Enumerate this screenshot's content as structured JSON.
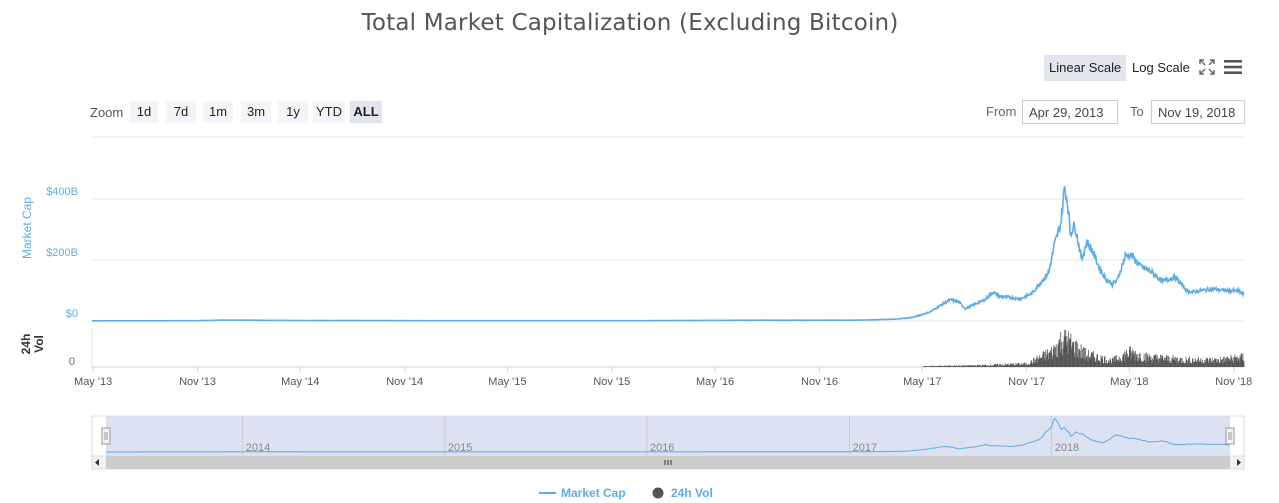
{
  "title": "Total Market Capitalization (Excluding Bitcoin)",
  "toolbar": {
    "linear_label": "Linear Scale",
    "log_label": "Log Scale",
    "active_scale": "linear",
    "fullscreen_icon": "fullscreen-icon",
    "menu_icon": "menu-icon"
  },
  "zoom": {
    "label": "Zoom",
    "buttons": [
      "1d",
      "7d",
      "1m",
      "3m",
      "1y",
      "YTD",
      "ALL"
    ],
    "active": "ALL"
  },
  "range": {
    "from_label": "From",
    "from_value": "Apr 29, 2013",
    "to_label": "To",
    "to_value": "Nov 19, 2018"
  },
  "legend": {
    "market_cap": "Market Cap",
    "volume": "24h Vol"
  },
  "colors": {
    "market_cap": "#5dade2",
    "volume": "#555555",
    "navigator_fill": "#d5dbef",
    "grid": "#e6e6e6"
  },
  "chart_data": {
    "type": "line",
    "title": "Total Market Capitalization (Excluding Bitcoin)",
    "ylabel": "Market Cap",
    "ylim": [
      0,
      520
    ],
    "y_unit": "billion USD",
    "y_ticks": [
      "$0",
      "$200B",
      "$400B"
    ],
    "x_ticks": [
      "May '13",
      "Nov '13",
      "May '14",
      "Nov '14",
      "May '15",
      "Nov '15",
      "May '16",
      "Nov '16",
      "May '17",
      "Nov '17",
      "May '18",
      "Nov '18"
    ],
    "volume_axis": {
      "label": "24h Vol",
      "ticks": [
        "0"
      ]
    },
    "navigator_labels": [
      "2014",
      "2015",
      "2016",
      "2017",
      "2018"
    ],
    "series": [
      {
        "name": "Market Cap",
        "points": [
          [
            "2013-04-29",
            0.5
          ],
          [
            "2013-11-01",
            1
          ],
          [
            "2013-12-15",
            3
          ],
          [
            "2014-06-01",
            1.5
          ],
          [
            "2015-01-01",
            1
          ],
          [
            "2016-01-01",
            1
          ],
          [
            "2016-06-01",
            2.5
          ],
          [
            "2017-01-01",
            2.5
          ],
          [
            "2017-03-15",
            6
          ],
          [
            "2017-04-15",
            12
          ],
          [
            "2017-05-15",
            30
          ],
          [
            "2017-06-10",
            60
          ],
          [
            "2017-06-20",
            70
          ],
          [
            "2017-07-05",
            62
          ],
          [
            "2017-07-16",
            40
          ],
          [
            "2017-08-01",
            55
          ],
          [
            "2017-08-20",
            70
          ],
          [
            "2017-09-02",
            95
          ],
          [
            "2017-09-15",
            80
          ],
          [
            "2017-10-01",
            78
          ],
          [
            "2017-10-20",
            72
          ],
          [
            "2017-11-10",
            90
          ],
          [
            "2017-11-25",
            125
          ],
          [
            "2017-12-10",
            160
          ],
          [
            "2017-12-20",
            250
          ],
          [
            "2017-12-31",
            320
          ],
          [
            "2018-01-07",
            440
          ],
          [
            "2018-01-12",
            390
          ],
          [
            "2018-01-17",
            290
          ],
          [
            "2018-01-25",
            315
          ],
          [
            "2018-02-06",
            200
          ],
          [
            "2018-02-15",
            260
          ],
          [
            "2018-02-25",
            230
          ],
          [
            "2018-03-10",
            170
          ],
          [
            "2018-03-20",
            140
          ],
          [
            "2018-04-01",
            120
          ],
          [
            "2018-04-10",
            135
          ],
          [
            "2018-04-24",
            215
          ],
          [
            "2018-05-05",
            215
          ],
          [
            "2018-05-20",
            180
          ],
          [
            "2018-06-10",
            160
          ],
          [
            "2018-06-28",
            130
          ],
          [
            "2018-07-20",
            145
          ],
          [
            "2018-08-10",
            100
          ],
          [
            "2018-08-20",
            95
          ],
          [
            "2018-09-05",
            100
          ],
          [
            "2018-09-25",
            105
          ],
          [
            "2018-10-15",
            100
          ],
          [
            "2018-11-10",
            98
          ],
          [
            "2018-11-19",
            85
          ]
        ]
      },
      {
        "name": "24h Vol",
        "points": [
          [
            "2013-04-29",
            0
          ],
          [
            "2017-04-01",
            0
          ],
          [
            "2017-05-15",
            0.8
          ],
          [
            "2017-08-01",
            1.2
          ],
          [
            "2017-11-01",
            2.5
          ],
          [
            "2017-12-15",
            12
          ],
          [
            "2018-01-07",
            25
          ],
          [
            "2018-01-20",
            18
          ],
          [
            "2018-02-15",
            10
          ],
          [
            "2018-04-01",
            5
          ],
          [
            "2018-05-01",
            12
          ],
          [
            "2018-06-01",
            8
          ],
          [
            "2018-08-01",
            6
          ],
          [
            "2018-10-01",
            5.5
          ],
          [
            "2018-11-19",
            8
          ]
        ]
      }
    ]
  }
}
